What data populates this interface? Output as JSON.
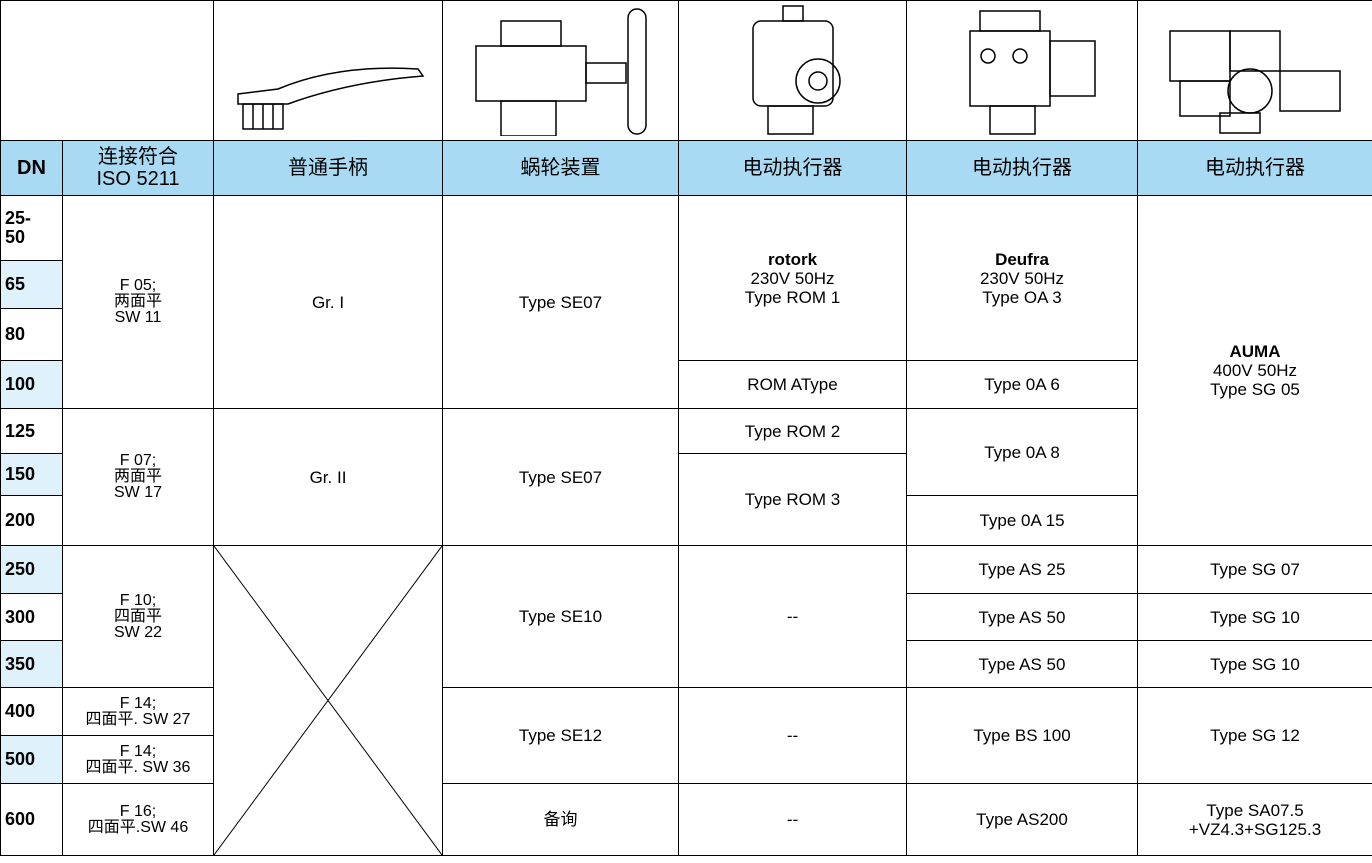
{
  "header": {
    "dn": "DN",
    "iso": [
      "连接符合",
      "ISO 5211"
    ],
    "handle": "普通手柄",
    "worm": "蜗轮装置",
    "actuators": [
      "电动执行器",
      "电动执行器",
      "电动执行器"
    ]
  },
  "dn": [
    [
      "25-",
      "50"
    ],
    "65",
    "80",
    "100",
    "125",
    "150",
    "200",
    "250",
    "300",
    "350",
    "400",
    "500",
    "600"
  ],
  "iso": [
    [
      "F 05;",
      "两面平",
      "SW 11"
    ],
    [
      "F 07;",
      "两面平",
      "SW 17"
    ],
    [
      "F 10;",
      "四面平",
      "SW 22"
    ],
    [
      "F 14;",
      "四面平. SW 27"
    ],
    [
      "F 14;",
      "四面平. SW 36"
    ],
    [
      "F 16;",
      "四面平.SW 46"
    ]
  ],
  "handle": [
    "Gr. I",
    "Gr. II"
  ],
  "worm": [
    "Type SE07",
    "Type SE07",
    "Type SE10",
    "Type SE12",
    "备询"
  ],
  "rotork": [
    [
      "rotork",
      "230V 50Hz",
      "Type ROM 1"
    ],
    "ROM AType",
    "Type ROM 2",
    "Type ROM 3",
    "--",
    "--",
    "--"
  ],
  "deufra": [
    [
      "Deufra",
      "230V 50Hz",
      "Type OA 3"
    ],
    "Type 0A 6",
    "Type 0A 8",
    "Type 0A 15",
    "Type AS 25",
    "Type AS 50",
    "Type AS 50",
    "Type BS 100",
    "Type AS200"
  ],
  "auma": [
    [
      "AUMA",
      "400V 50Hz",
      "Type SG 05"
    ],
    "Type SG 07",
    "Type SG 10",
    "Type SG 10",
    "Type SG 12",
    [
      "Type SA07.5",
      "+VZ4.3+SG125.3"
    ]
  ]
}
